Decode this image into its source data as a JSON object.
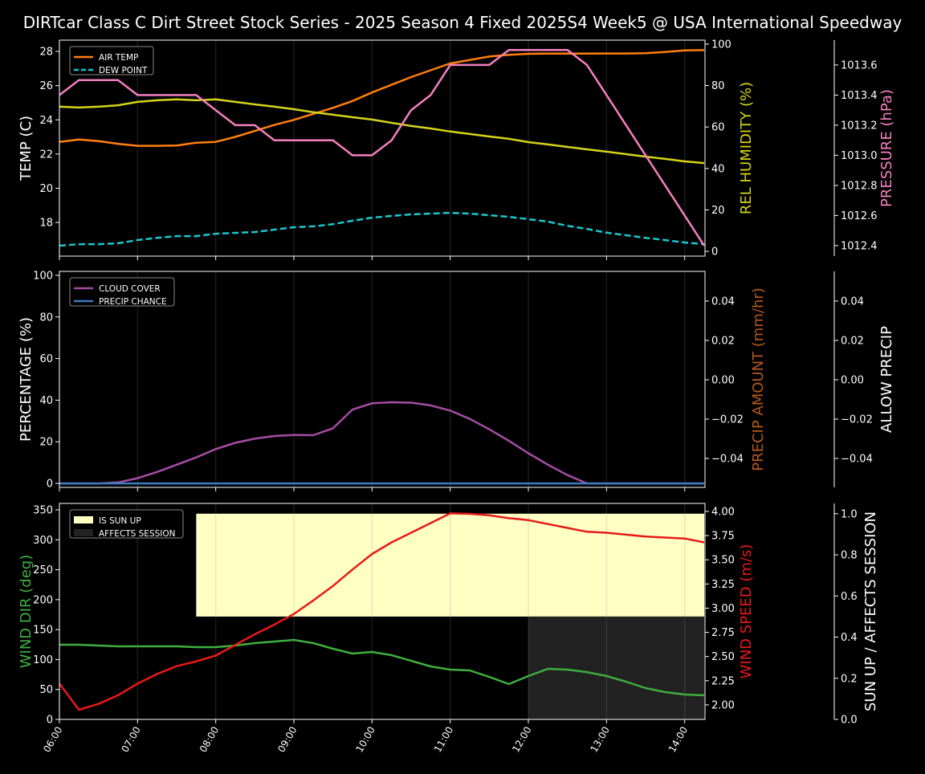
{
  "chart_data": {
    "title": "DIRTcar Class C Dirt Street Stock Series - 2025 Season 4 Fixed 2025S4 Week5 @ USA International Speedway",
    "x": [
      "06:00",
      "06:15",
      "06:30",
      "06:45",
      "07:00",
      "07:15",
      "07:30",
      "07:45",
      "08:00",
      "08:15",
      "08:30",
      "08:45",
      "09:00",
      "09:15",
      "09:30",
      "09:45",
      "10:00",
      "10:15",
      "10:30",
      "10:45",
      "11:00",
      "11:15",
      "11:30",
      "11:45",
      "12:00",
      "12:15",
      "12:30",
      "12:45",
      "13:00",
      "13:15",
      "13:30",
      "13:45",
      "14:00",
      "14:15"
    ],
    "x_hours_range": [
      6,
      14.26
    ],
    "x_tick_labels": [
      "06:00",
      "07:00",
      "08:00",
      "09:00",
      "10:00",
      "11:00",
      "12:00",
      "13:00",
      "14:00"
    ],
    "panels": [
      {
        "type": "line",
        "axes": [
          {
            "side": "left",
            "label": "TEMP (C)",
            "color": "#ffffff",
            "ylim": [
              16.03,
              28.66
            ],
            "ticks": [
              18,
              20,
              22,
              24,
              26,
              28
            ],
            "tick_labels": [
              "18",
              "20",
              "22",
              "24",
              "26",
              "28"
            ]
          },
          {
            "side": "right",
            "label": "REL HUMIDITY (%)",
            "color": "#d4d41a",
            "ylim": [
              -2.3,
              101.9
            ],
            "ticks": [
              0,
              20,
              40,
              60,
              80,
              100
            ],
            "tick_labels": [
              "0",
              "20",
              "40",
              "60",
              "80",
              "100"
            ]
          },
          {
            "side": "far-right",
            "label": "PRESSURE (hPa)",
            "color": "#f47fbf",
            "ylim": [
              1012.33,
              1013.765
            ],
            "ticks": [
              1012.4,
              1012.6,
              1012.8,
              1013.0,
              1013.2,
              1013.4,
              1013.6
            ],
            "tick_labels": [
              "1012.4",
              "1012.6",
              "1012.8",
              "1013.0",
              "1013.2",
              "1013.4",
              "1013.6"
            ]
          }
        ],
        "legend": {
          "placement": "top-left",
          "entries": [
            {
              "label": "AIR TEMP",
              "color": "#ff7f0e",
              "dash": false
            },
            {
              "label": "DEW POINT",
              "color": "#17c8d0",
              "dash": true
            }
          ]
        },
        "series": [
          {
            "name": "AIR TEMP",
            "axis": 0,
            "color": "#ff7f0e",
            "dash": false,
            "values": [
              22.71,
              22.85,
              22.76,
              22.6,
              22.48,
              22.48,
              22.5,
              22.66,
              22.71,
              23.0,
              23.35,
              23.7,
              24.0,
              24.35,
              24.7,
              25.1,
              25.6,
              26.05,
              26.5,
              26.9,
              27.3,
              27.5,
              27.7,
              27.8,
              27.86,
              27.87,
              27.87,
              27.87,
              27.88,
              27.88,
              27.9,
              27.97,
              28.06,
              28.08
            ]
          },
          {
            "name": "DEW POINT",
            "axis": 0,
            "color": "#17c8d0",
            "dash": true,
            "values": [
              16.64,
              16.73,
              16.73,
              16.78,
              16.97,
              17.1,
              17.2,
              17.2,
              17.34,
              17.39,
              17.44,
              17.58,
              17.72,
              17.77,
              17.9,
              18.1,
              18.28,
              18.38,
              18.47,
              18.52,
              18.56,
              18.52,
              18.42,
              18.33,
              18.19,
              18.05,
              17.8,
              17.62,
              17.4,
              17.25,
              17.1,
              16.97,
              16.83,
              16.73
            ]
          },
          {
            "name": "REL HUMIDITY",
            "axis": 1,
            "color": "#d4d41a",
            "dash": false,
            "values": [
              69.8,
              69.4,
              69.8,
              70.5,
              72.1,
              72.9,
              73.3,
              72.9,
              73.3,
              72.1,
              70.9,
              69.8,
              68.6,
              67.1,
              65.9,
              64.7,
              63.6,
              62.0,
              60.5,
              59.3,
              57.8,
              56.6,
              55.4,
              54.3,
              52.7,
              51.6,
              50.4,
              49.2,
              48.1,
              46.9,
              45.7,
              44.6,
              43.4,
              42.6
            ]
          },
          {
            "name": "PRESSURE",
            "axis": 2,
            "color": "#f47fbf",
            "dash": false,
            "values": [
              1013.4,
              1013.5,
              1013.5,
              1013.5,
              1013.4,
              1013.4,
              1013.4,
              1013.4,
              1013.3,
              1013.2,
              1013.2,
              1013.1,
              1013.1,
              1013.1,
              1013.1,
              1013.0,
              1013.0,
              1013.1,
              1013.3,
              1013.4,
              1013.6,
              1013.6,
              1013.6,
              1013.7,
              1013.7,
              1013.7,
              1013.7,
              1013.6,
              1013.4,
              1013.2,
              1013.0,
              1012.8,
              1012.6,
              1012.4
            ]
          }
        ]
      },
      {
        "type": "line",
        "axes": [
          {
            "side": "left",
            "label": "PERCENTAGE (%)",
            "color": "#ffffff",
            "ylim": [
              -1.9,
              101.9
            ],
            "ticks": [
              0,
              20,
              40,
              60,
              80,
              100
            ],
            "tick_labels": [
              "0",
              "20",
              "40",
              "60",
              "80",
              "100"
            ]
          },
          {
            "side": "right",
            "label": "PRECIP AMOUNT (mm/hr)",
            "color": "#b5581f",
            "ylim": [
              -0.0547,
              0.0551
            ],
            "ticks": [
              -0.04,
              -0.02,
              0,
              0.02,
              0.04
            ],
            "tick_labels": [
              "−0.04",
              "−0.02",
              "0.00",
              "0.02",
              "0.04"
            ]
          },
          {
            "side": "far-right",
            "label": "ALLOW PRECIP",
            "color": "#ffffff",
            "ylim": [
              -0.0547,
              0.0551
            ],
            "ticks": [
              -0.04,
              -0.02,
              0,
              0.02,
              0.04
            ],
            "tick_labels": [
              "−0.04",
              "−0.02",
              "0.00",
              "0.02",
              "0.04"
            ]
          }
        ],
        "legend": {
          "placement": "top-left",
          "entries": [
            {
              "label": "CLOUD COVER",
              "color": "#a64ca6",
              "dash": false
            },
            {
              "label": "PRECIP CHANCE",
              "color": "#3a7dc4",
              "dash": false
            }
          ]
        },
        "series": [
          {
            "name": "CLOUD COVER",
            "axis": 0,
            "color": "#a64ca6",
            "dash": false,
            "values": [
              0,
              0,
              0,
              0.5,
              2.5,
              5.5,
              9,
              12.5,
              16.5,
              19.5,
              21.5,
              22.8,
              23.3,
              23.2,
              26.5,
              35.5,
              38.5,
              39,
              38.8,
              37.5,
              35,
              31,
              26,
              20.5,
              14.5,
              9,
              4,
              0,
              0,
              0,
              0,
              0,
              0,
              0
            ]
          },
          {
            "name": "PRECIP CHANCE",
            "axis": 0,
            "color": "#3a7dc4",
            "dash": false,
            "values": [
              0,
              0,
              0,
              0,
              0,
              0,
              0,
              0,
              0,
              0,
              0,
              0,
              0,
              0,
              0,
              0,
              0,
              0,
              0,
              0,
              0,
              0,
              0,
              0,
              0,
              0,
              0,
              0,
              0,
              0,
              0,
              0,
              0,
              0
            ]
          }
        ]
      },
      {
        "type": "line",
        "axes": [
          {
            "side": "left",
            "label": "WIND DIR (deg)",
            "color": "#3fae3f",
            "ylim": [
              0,
              360.7
            ],
            "ticks": [
              0,
              50,
              100,
              150,
              200,
              250,
              300,
              350
            ],
            "tick_labels": [
              "0",
              "50",
              "100",
              "150",
              "200",
              "250",
              "300",
              "350"
            ]
          },
          {
            "side": "right",
            "label": "WIND SPEED (m/s)",
            "color": "#e8191a",
            "ylim": [
              1.85,
              4.083
            ],
            "ticks": [
              2.0,
              2.25,
              2.5,
              2.75,
              3.0,
              3.25,
              3.5,
              3.75,
              4.0
            ],
            "tick_labels": [
              "2.00",
              "2.25",
              "2.50",
              "2.75",
              "3.00",
              "3.25",
              "3.50",
              "3.75",
              "4.00"
            ]
          },
          {
            "side": "far-right",
            "label": "SUN UP / AFFECTS SESSION",
            "color": "#ffffff",
            "ylim": [
              0,
              1.05
            ],
            "ticks": [
              0,
              0.2,
              0.4,
              0.6,
              0.8,
              1.0
            ],
            "tick_labels": [
              "0.0",
              "0.2",
              "0.4",
              "0.6",
              "0.8",
              "1.0"
            ]
          }
        ],
        "legend": {
          "placement": "top-left",
          "entries": [
            {
              "label": "IS SUN UP",
              "color": "#ffffc4",
              "box": true
            },
            {
              "label": "AFFECTS SESSION",
              "color": "#222222",
              "box": true
            }
          ]
        },
        "bands": [
          {
            "name": "IS SUN UP",
            "color": "#ffffc4",
            "axis": 2,
            "x_from": "07:45",
            "x_to": "14:15",
            "y_from": 0.5,
            "y_to": 1.0
          },
          {
            "name": "AFFECTS SESSION",
            "color": "#222222",
            "axis": 2,
            "x_from": "12:00",
            "x_to": "14:15",
            "y_from": 0.0,
            "y_to": 0.5
          }
        ],
        "series": [
          {
            "name": "WIND DIR",
            "axis": 0,
            "color": "#3fae3f",
            "dash": false,
            "values": [
              124.7,
              124.7,
              123.4,
              122,
              122,
              122,
              122,
              120.7,
              120.7,
              123.4,
              127.4,
              130,
              132.8,
              127.4,
              118,
              110,
              112.6,
              107.3,
              97.9,
              88.5,
              83.1,
              81.8,
              71,
              59,
              72.4,
              84.5,
              83.1,
              79,
              72.4,
              63,
              52.3,
              45.6,
              41.6,
              40.2
            ]
          },
          {
            "name": "WIND SPEED",
            "axis": 1,
            "color": "#e8191a",
            "dash": false,
            "values": [
              2.22,
              1.95,
              2.01,
              2.1,
              2.22,
              2.32,
              2.4,
              2.45,
              2.51,
              2.62,
              2.73,
              2.83,
              2.94,
              3.08,
              3.23,
              3.4,
              3.56,
              3.68,
              3.78,
              3.88,
              3.98,
              3.975,
              3.96,
              3.93,
              3.91,
              3.87,
              3.83,
              3.79,
              3.78,
              3.76,
              3.74,
              3.73,
              3.72,
              3.68
            ]
          }
        ]
      }
    ]
  }
}
